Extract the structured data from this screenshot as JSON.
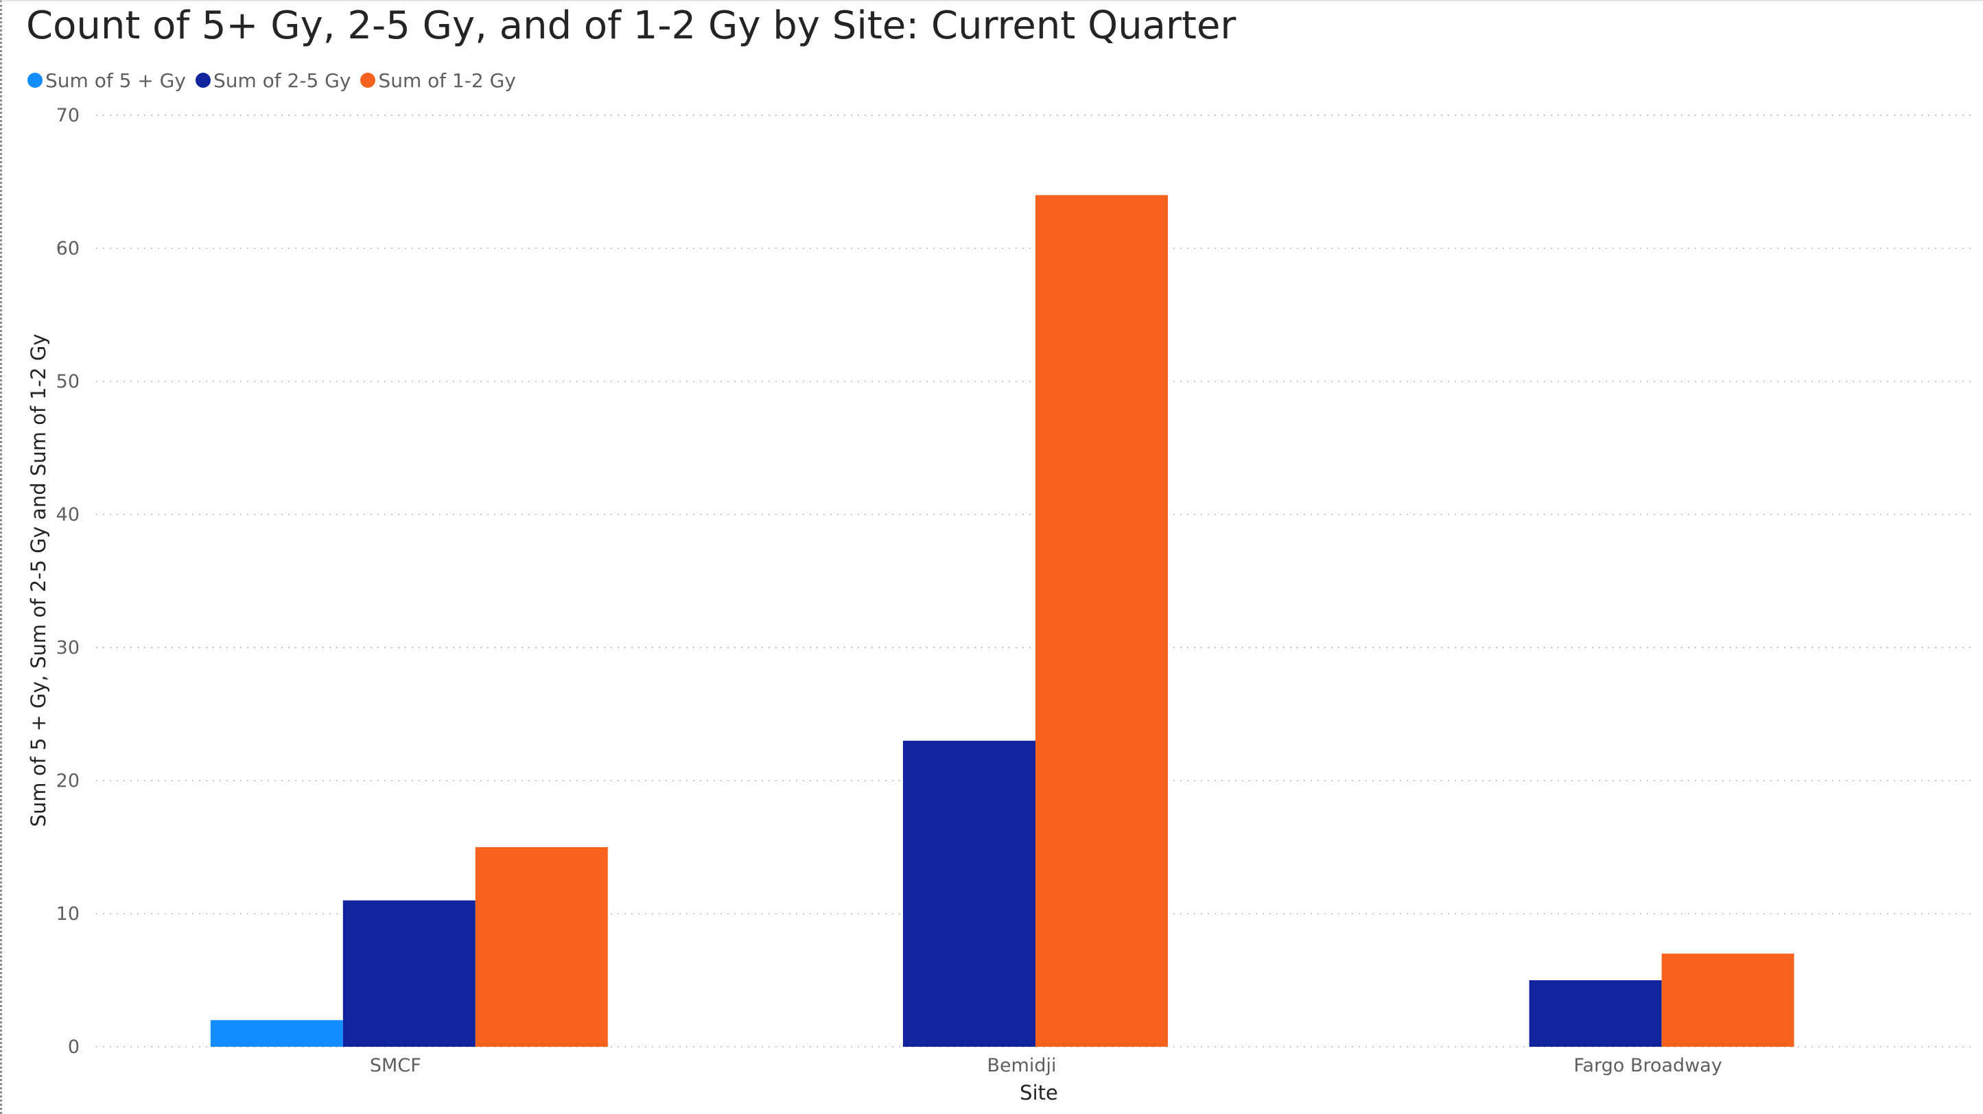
{
  "chart_data": {
    "type": "bar",
    "title": "Count of 5+ Gy, 2-5 Gy, and of 1-2 Gy by Site: Current Quarter",
    "xlabel": "Site",
    "ylabel": "Sum of 5 + Gy, Sum of 2-5 Gy and Sum of 1-2 Gy",
    "categories": [
      "SMCF",
      "Bemidji",
      "Fargo Broadway"
    ],
    "series": [
      {
        "name": "Sum of 5 + Gy",
        "color": "#118dff",
        "values": [
          2,
          0,
          0
        ]
      },
      {
        "name": "Sum of 2-5 Gy",
        "color": "#12239e",
        "values": [
          11,
          23,
          5
        ]
      },
      {
        "name": "Sum of 1-2 Gy",
        "color": "#f7631e",
        "values": [
          15,
          64,
          7
        ]
      }
    ],
    "ylim": [
      0,
      70
    ],
    "yticks": [
      "0",
      "10",
      "20",
      "30",
      "40",
      "50",
      "60",
      "70"
    ],
    "grid": true,
    "legend_position": "top-left"
  }
}
